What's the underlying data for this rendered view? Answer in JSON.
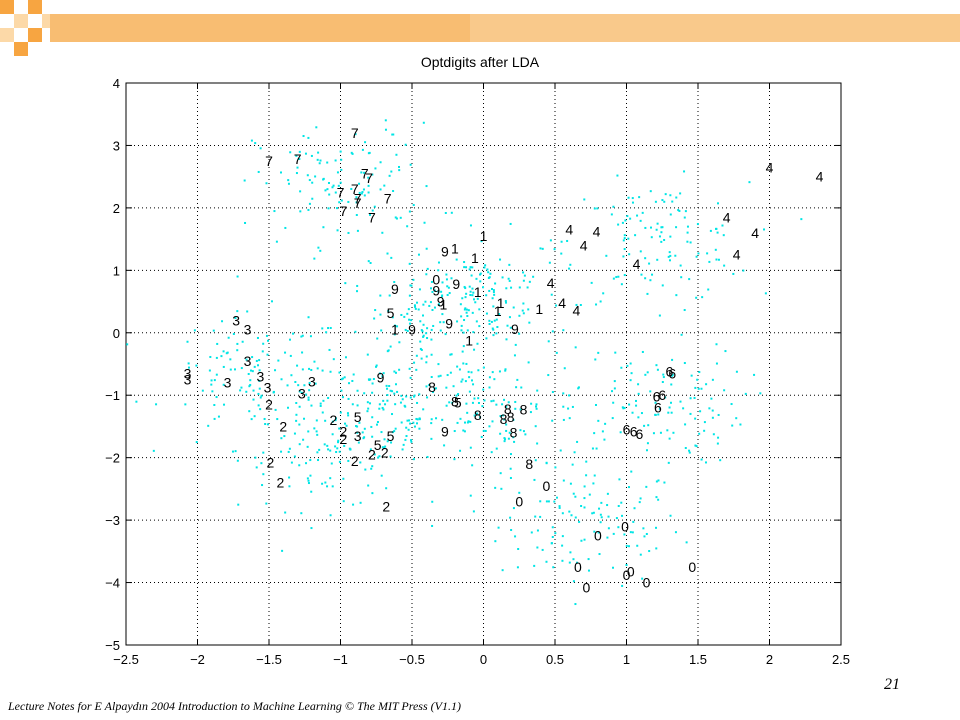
{
  "slide": {
    "footer": "Lecture Notes for E Alpaydın 2004 Introduction to Machine Learning © The MIT Press (V1.1)",
    "page_number": "21",
    "accent_color": "#f7a541"
  },
  "chart_data": {
    "type": "scatter",
    "title": "Optdigits after LDA",
    "xlabel": "",
    "ylabel": "",
    "xlim": [
      -2.5,
      2.5
    ],
    "ylim": [
      -5,
      4
    ],
    "x_ticks": [
      -2.5,
      -2,
      -1.5,
      -1,
      -0.5,
      0,
      0.5,
      1,
      1.5,
      2,
      2.5
    ],
    "y_ticks": [
      -5,
      -4,
      -3,
      -2,
      -1,
      0,
      1,
      2,
      3,
      4
    ],
    "x_tick_labels": [
      "−2.5",
      "−2",
      "−1.5",
      "−1",
      "−0.5",
      "0",
      "0.5",
      "1",
      "1.5",
      "2",
      "2.5"
    ],
    "y_tick_labels": [
      "−5",
      "−4",
      "−3",
      "−2",
      "−1",
      "0",
      "1",
      "2",
      "3",
      "4"
    ],
    "grid": true,
    "grid_style": "dotted",
    "point_color": "#00e5e5",
    "label_color": "#000000",
    "labeled_points": [
      {
        "label": "7",
        "x": -0.9,
        "y": 3.2
      },
      {
        "label": "7",
        "x": -1.5,
        "y": 2.75
      },
      {
        "label": "7",
        "x": -1.3,
        "y": 2.78
      },
      {
        "label": "7",
        "x": -0.83,
        "y": 2.55
      },
      {
        "label": "7",
        "x": -0.8,
        "y": 2.48
      },
      {
        "label": "7",
        "x": -1.0,
        "y": 2.25
      },
      {
        "label": "7",
        "x": -0.9,
        "y": 2.3
      },
      {
        "label": "7",
        "x": -0.88,
        "y": 2.15
      },
      {
        "label": "7",
        "x": -0.88,
        "y": 2.08
      },
      {
        "label": "7",
        "x": -0.67,
        "y": 2.15
      },
      {
        "label": "7",
        "x": -0.98,
        "y": 1.95
      },
      {
        "label": "7",
        "x": -0.78,
        "y": 1.85
      },
      {
        "label": "4",
        "x": 2.0,
        "y": 2.65
      },
      {
        "label": "4",
        "x": 2.35,
        "y": 2.5
      },
      {
        "label": "4",
        "x": 1.7,
        "y": 1.85
      },
      {
        "label": "4",
        "x": 0.6,
        "y": 1.65
      },
      {
        "label": "4",
        "x": 0.79,
        "y": 1.62
      },
      {
        "label": "4",
        "x": 1.9,
        "y": 1.6
      },
      {
        "label": "4",
        "x": 0.7,
        "y": 1.4
      },
      {
        "label": "4",
        "x": 1.77,
        "y": 1.25
      },
      {
        "label": "4",
        "x": 1.07,
        "y": 1.1
      },
      {
        "label": "4",
        "x": 0.47,
        "y": 0.8
      },
      {
        "label": "4",
        "x": 0.55,
        "y": 0.48
      },
      {
        "label": "4",
        "x": 0.65,
        "y": 0.36
      },
      {
        "label": "1",
        "x": 0.0,
        "y": 1.55
      },
      {
        "label": "1",
        "x": -0.2,
        "y": 1.35
      },
      {
        "label": "1",
        "x": -0.06,
        "y": 1.2
      },
      {
        "label": "1",
        "x": -0.04,
        "y": 0.65
      },
      {
        "label": "1",
        "x": -0.28,
        "y": 0.45
      },
      {
        "label": "1",
        "x": 0.12,
        "y": 0.48
      },
      {
        "label": "1",
        "x": 0.1,
        "y": 0.35
      },
      {
        "label": "1",
        "x": 0.39,
        "y": 0.38
      },
      {
        "label": "1",
        "x": -0.62,
        "y": 0.05
      },
      {
        "label": "1",
        "x": -0.1,
        "y": -0.12
      },
      {
        "label": "9",
        "x": -0.27,
        "y": 1.3
      },
      {
        "label": "9",
        "x": -0.62,
        "y": 0.7
      },
      {
        "label": "9",
        "x": -0.33,
        "y": 0.68
      },
      {
        "label": "9",
        "x": -0.19,
        "y": 0.78
      },
      {
        "label": "9",
        "x": -0.3,
        "y": 0.5
      },
      {
        "label": "9",
        "x": -0.24,
        "y": 0.15
      },
      {
        "label": "9",
        "x": -0.5,
        "y": 0.05
      },
      {
        "label": "9",
        "x": 0.22,
        "y": 0.06
      },
      {
        "label": "9",
        "x": -0.72,
        "y": -0.72
      },
      {
        "label": "9",
        "x": -0.27,
        "y": -1.58
      },
      {
        "label": "0",
        "x": -0.33,
        "y": 0.85
      },
      {
        "label": "0",
        "x": 0.44,
        "y": -2.45
      },
      {
        "label": "0",
        "x": 0.25,
        "y": -2.7
      },
      {
        "label": "0",
        "x": 0.99,
        "y": -3.1
      },
      {
        "label": "0",
        "x": 0.8,
        "y": -3.25
      },
      {
        "label": "0",
        "x": 0.66,
        "y": -3.75
      },
      {
        "label": "0",
        "x": 1.46,
        "y": -3.75
      },
      {
        "label": "0",
        "x": 1.03,
        "y": -3.82
      },
      {
        "label": "0",
        "x": 1.0,
        "y": -3.88
      },
      {
        "label": "0",
        "x": 1.14,
        "y": -4.0
      },
      {
        "label": "0",
        "x": 0.72,
        "y": -4.08
      },
      {
        "label": "5",
        "x": -0.65,
        "y": 0.32
      },
      {
        "label": "5",
        "x": -0.88,
        "y": -1.35
      },
      {
        "label": "5",
        "x": -0.65,
        "y": -1.65
      },
      {
        "label": "5",
        "x": -0.74,
        "y": -1.8
      },
      {
        "label": "5",
        "x": -0.18,
        "y": -1.12
      },
      {
        "label": "3",
        "x": -1.73,
        "y": 0.2
      },
      {
        "label": "3",
        "x": -1.65,
        "y": 0.05
      },
      {
        "label": "3",
        "x": -1.65,
        "y": -0.45
      },
      {
        "label": "3",
        "x": -2.07,
        "y": -0.65
      },
      {
        "label": "3",
        "x": -2.07,
        "y": -0.75
      },
      {
        "label": "3",
        "x": -1.79,
        "y": -0.8
      },
      {
        "label": "3",
        "x": -1.56,
        "y": -0.7
      },
      {
        "label": "3",
        "x": -1.51,
        "y": -0.88
      },
      {
        "label": "3",
        "x": -1.2,
        "y": -0.78
      },
      {
        "label": "3",
        "x": -1.27,
        "y": -0.97
      },
      {
        "label": "3",
        "x": -0.88,
        "y": -1.65
      },
      {
        "label": "2",
        "x": -1.5,
        "y": -1.15
      },
      {
        "label": "2",
        "x": -1.4,
        "y": -1.5
      },
      {
        "label": "2",
        "x": -1.05,
        "y": -1.4
      },
      {
        "label": "2",
        "x": -0.98,
        "y": -1.58
      },
      {
        "label": "2",
        "x": -0.98,
        "y": -1.7
      },
      {
        "label": "2",
        "x": -0.78,
        "y": -1.95
      },
      {
        "label": "2",
        "x": -0.69,
        "y": -1.92
      },
      {
        "label": "2",
        "x": -0.9,
        "y": -2.05
      },
      {
        "label": "2",
        "x": -1.49,
        "y": -2.08
      },
      {
        "label": "2",
        "x": -1.42,
        "y": -2.4
      },
      {
        "label": "2",
        "x": -0.68,
        "y": -2.78
      },
      {
        "label": "8",
        "x": -0.36,
        "y": -0.87
      },
      {
        "label": "8",
        "x": -0.2,
        "y": -1.1
      },
      {
        "label": "8",
        "x": -0.04,
        "y": -1.32
      },
      {
        "label": "8",
        "x": 0.17,
        "y": -1.22
      },
      {
        "label": "8",
        "x": 0.28,
        "y": -1.23
      },
      {
        "label": "8",
        "x": 0.14,
        "y": -1.38
      },
      {
        "label": "8",
        "x": 0.19,
        "y": -1.35
      },
      {
        "label": "8",
        "x": 0.21,
        "y": -1.6
      },
      {
        "label": "8",
        "x": 0.32,
        "y": -2.1
      },
      {
        "label": "6",
        "x": 1.3,
        "y": -0.62
      },
      {
        "label": "6",
        "x": 1.32,
        "y": -0.65
      },
      {
        "label": "6",
        "x": 1.21,
        "y": -1.02
      },
      {
        "label": "6",
        "x": 1.25,
        "y": -1.0
      },
      {
        "label": "6",
        "x": 1.22,
        "y": -1.2
      },
      {
        "label": "6",
        "x": 1.0,
        "y": -1.55
      },
      {
        "label": "6",
        "x": 1.05,
        "y": -1.58
      },
      {
        "label": "6",
        "x": 1.09,
        "y": -1.62
      }
    ]
  }
}
